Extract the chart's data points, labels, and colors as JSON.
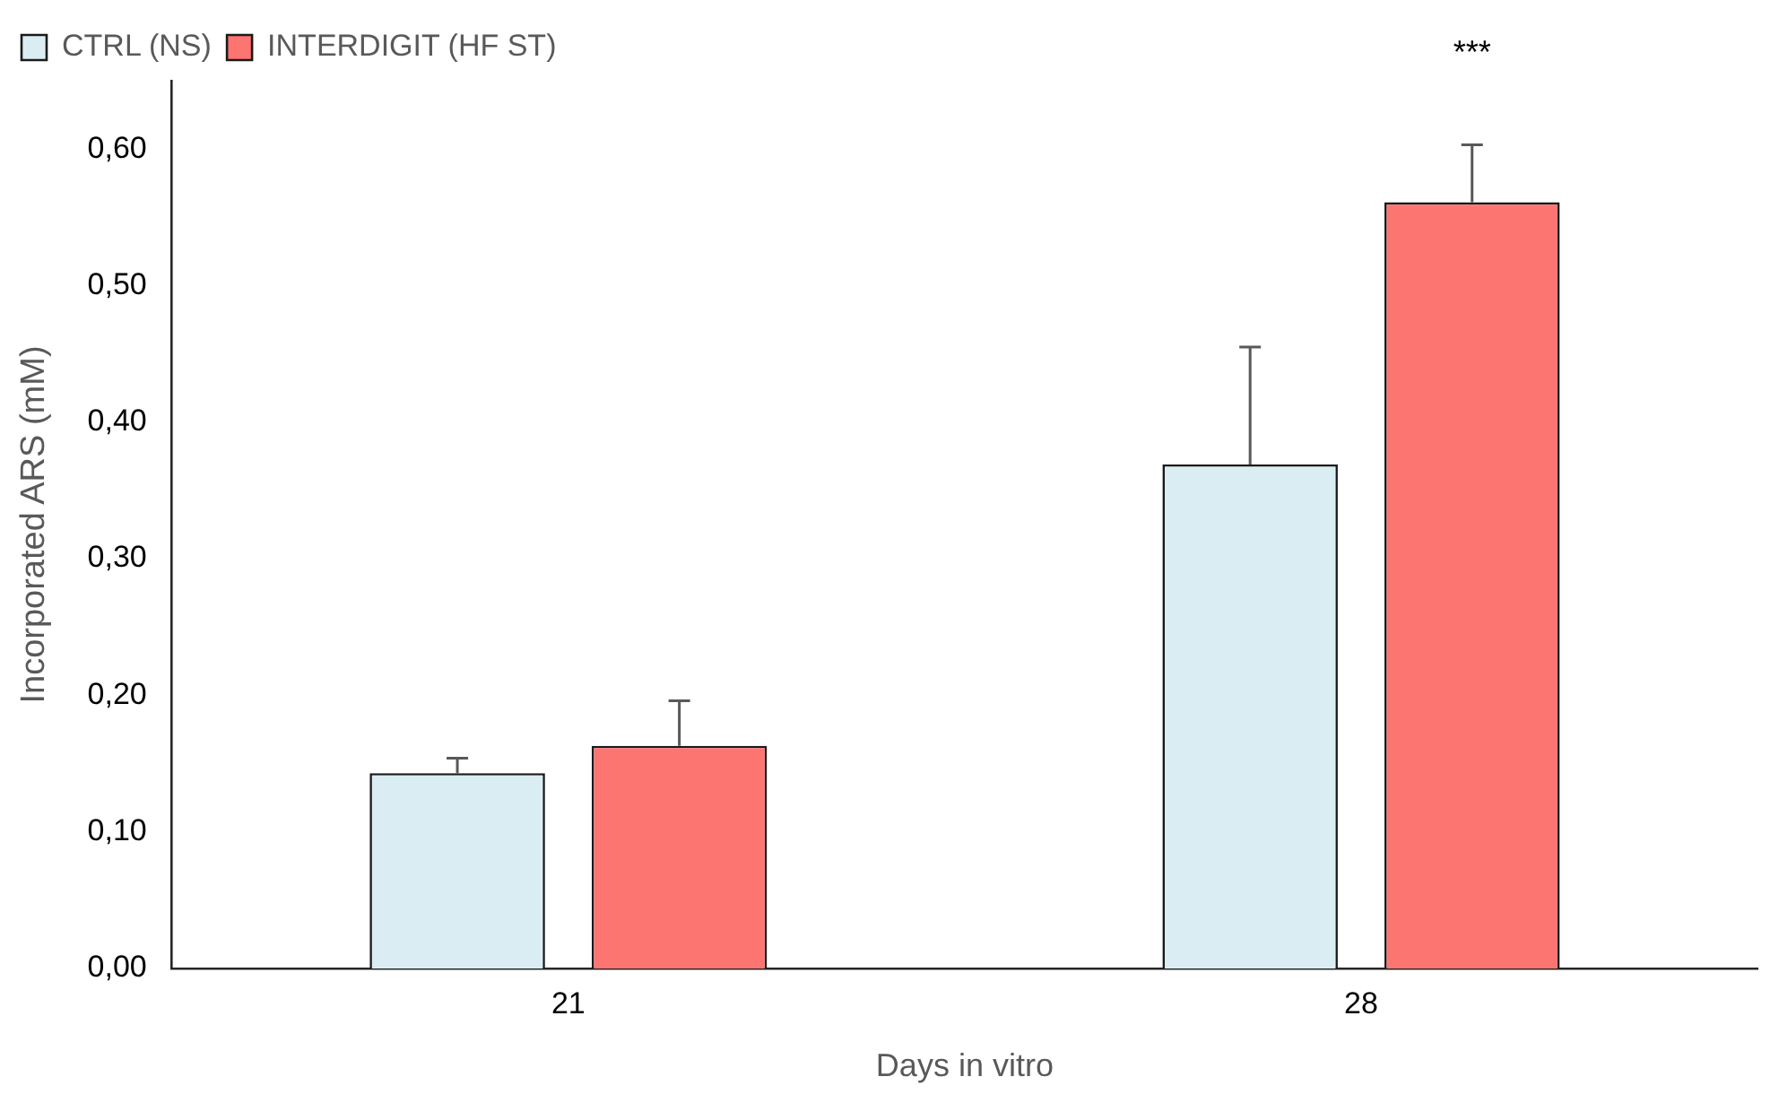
{
  "chart_data": {
    "type": "bar",
    "xlabel": "Days in vitro",
    "ylabel": "Incorporated ARS (mM)",
    "categories": [
      "21",
      "28"
    ],
    "series": [
      {
        "name": "CTRL (NS)",
        "color": "#daedf3",
        "values": [
          0.143,
          0.369
        ],
        "errors": [
          [
            0.143,
            0.154
          ],
          [
            0.369,
            0.455
          ]
        ]
      },
      {
        "name": "INTERDIGIT (HF ST)",
        "color": "#fc7571",
        "values": [
          0.163,
          0.561
        ],
        "errors": [
          [
            0.163,
            0.196
          ],
          [
            0.561,
            0.603
          ]
        ]
      }
    ],
    "ylim": [
      0,
      0.65
    ],
    "yticks": [
      {
        "value": 0,
        "label": "0,00"
      },
      {
        "value": 0.1,
        "label": "0,10"
      },
      {
        "value": 0.2,
        "label": "0,20"
      },
      {
        "value": 0.3,
        "label": "0,30"
      },
      {
        "value": 0.4,
        "label": "0,40"
      },
      {
        "value": 0.5,
        "label": "0,50"
      },
      {
        "value": 0.6,
        "label": "0,60"
      }
    ],
    "annotations": [
      "***"
    ],
    "grid": false,
    "legend": "top left"
  }
}
